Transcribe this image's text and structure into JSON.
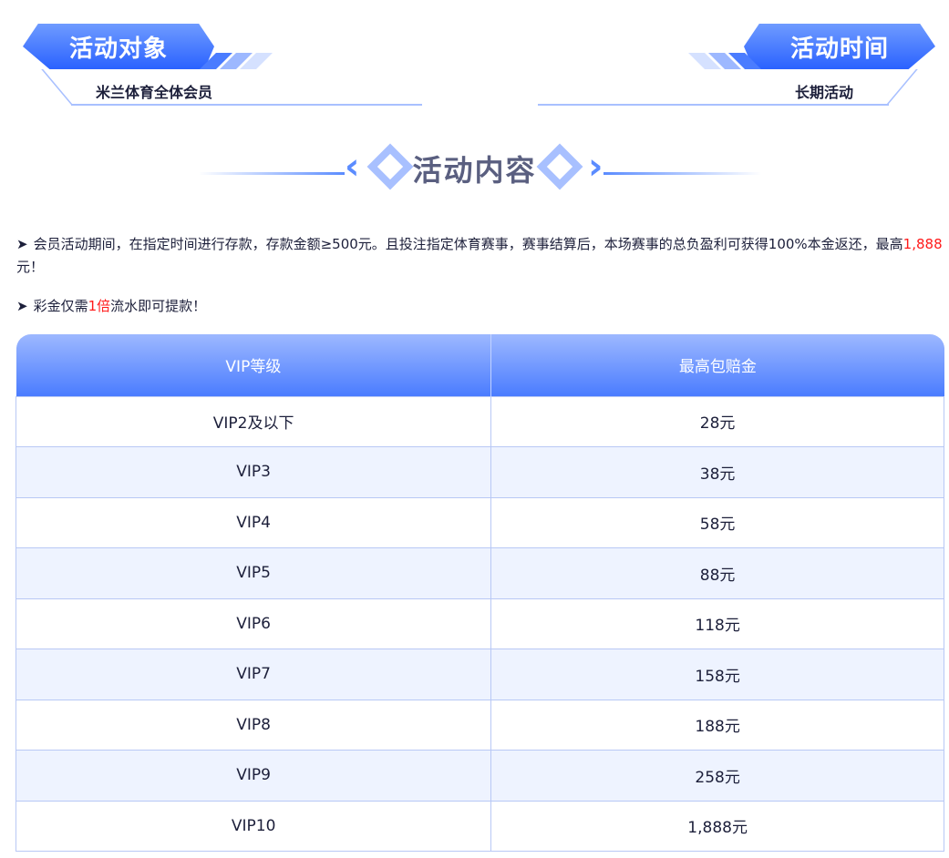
{
  "target": {
    "title": "活动对象",
    "value": "米兰体育全体会员"
  },
  "time": {
    "title": "活动时间",
    "value": "长期活动"
  },
  "content": {
    "title": "活动内容"
  },
  "rules": [
    {
      "pre": "会员活动期间，在指定时间进行存款，存款金额≥500元。且投注指定体育赛事，赛事结算后，本场赛事的总负盈利可获得100%本金返还，最高",
      "highlight": "1,888",
      "post": "元！"
    },
    {
      "pre": "彩金仅需",
      "highlight": "1倍",
      "post": "流水即可提款！"
    }
  ],
  "table": {
    "headers": [
      "VIP等级",
      "最高包赔金"
    ],
    "rows": [
      [
        "VIP2及以下",
        "28元"
      ],
      [
        "VIP3",
        "38元"
      ],
      [
        "VIP4",
        "58元"
      ],
      [
        "VIP5",
        "88元"
      ],
      [
        "VIP6",
        "118元"
      ],
      [
        "VIP7",
        "158元"
      ],
      [
        "VIP8",
        "188元"
      ],
      [
        "VIP9",
        "258元"
      ],
      [
        "VIP10",
        "1,888元"
      ]
    ]
  },
  "colors": {
    "accent": "#2a62ff",
    "highlight": "#ff1a1a"
  }
}
